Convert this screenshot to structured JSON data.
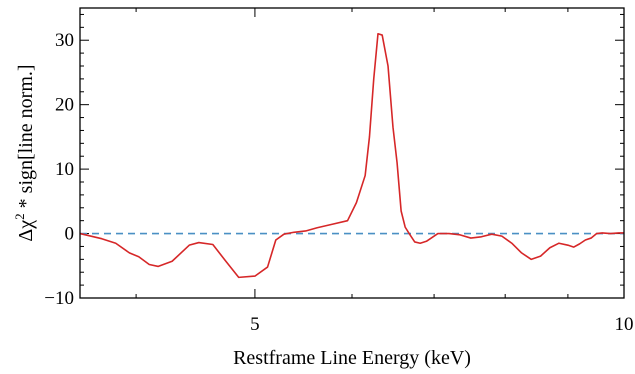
{
  "chart_data": {
    "type": "line",
    "title": "",
    "xlabel": "Restframe Line Energy (keV)",
    "ylabel_parts": {
      "delta": "Δχ",
      "sup": "2",
      "rest": " * sign[line norm.]"
    },
    "xscale": "log",
    "xlim": [
      3.6,
      10
    ],
    "ylim": [
      -10,
      35
    ],
    "xticks": [
      5,
      10
    ],
    "xtick_labels": [
      "5",
      "10"
    ],
    "yticks": [
      -10,
      0,
      10,
      20,
      30
    ],
    "ytick_labels": [
      "−10",
      "0",
      "10",
      "20",
      "30"
    ],
    "grid": false,
    "legend": "none",
    "reference_line": {
      "y": 0,
      "style": "dashed",
      "color": "#4a90c4"
    },
    "series": [
      {
        "color": "#d62728",
        "x": [
          3.6,
          3.75,
          3.85,
          3.95,
          4.02,
          4.1,
          4.17,
          4.28,
          4.42,
          4.5,
          4.62,
          4.73,
          4.85,
          5.0,
          5.12,
          5.2,
          5.28,
          5.38,
          5.5,
          5.62,
          5.77,
          5.95,
          6.05,
          6.15,
          6.2,
          6.25,
          6.3,
          6.35,
          6.42,
          6.48,
          6.53,
          6.58,
          6.63,
          6.68,
          6.75,
          6.82,
          6.9,
          7.05,
          7.2,
          7.35,
          7.5,
          7.65,
          7.8,
          7.95,
          8.1,
          8.25,
          8.4,
          8.55,
          8.7,
          8.85,
          9.0,
          9.1,
          9.2,
          9.3,
          9.4,
          9.5,
          9.6,
          9.75,
          9.9,
          10.0
        ],
        "y": [
          0,
          -0.8,
          -1.5,
          -3,
          -3.6,
          -4.8,
          -5.1,
          -4.3,
          -1.8,
          -1.4,
          -1.7,
          -4.2,
          -6.8,
          -6.6,
          -5.2,
          -1.0,
          -0.1,
          0.2,
          0.4,
          0.9,
          1.4,
          2.0,
          4.8,
          9.0,
          15.0,
          24.0,
          31.0,
          30.8,
          26.0,
          16.5,
          11.0,
          3.5,
          1.0,
          0.0,
          -1.3,
          -1.5,
          -1.2,
          0.0,
          0.0,
          -0.2,
          -0.7,
          -0.5,
          -0.1,
          -0.4,
          -1.5,
          -3.0,
          -4.0,
          -3.5,
          -2.2,
          -1.5,
          -1.8,
          -2.1,
          -1.6,
          -1.0,
          -0.7,
          0.0,
          0.1,
          0.0,
          0.1,
          0.1
        ]
      }
    ]
  }
}
